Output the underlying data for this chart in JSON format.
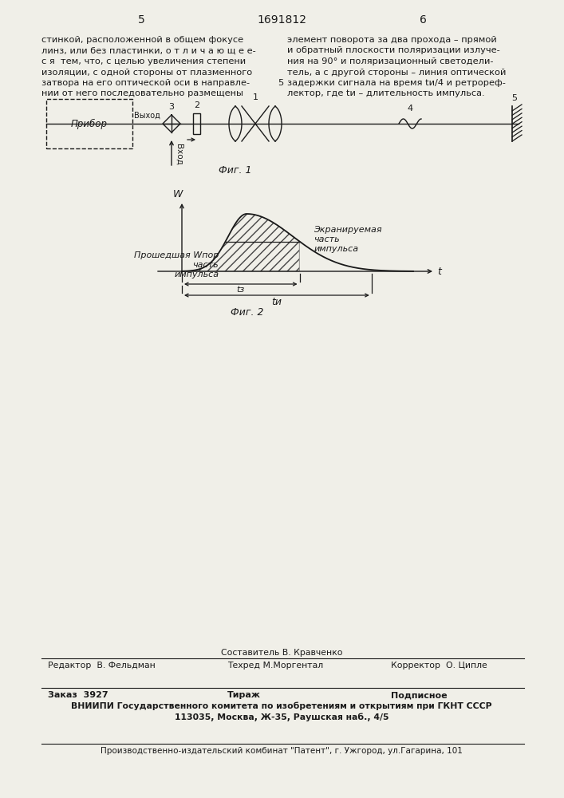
{
  "page_number_left": "5",
  "page_number_center": "1691812",
  "page_number_right": "6",
  "text_left_lines": [
    "стинкой, расположенной в общем фокусе",
    "линз, или без пластинки, о т л и ч а ю щ е е-",
    "с я  тем, что, с целью увеличения степени",
    "изоляции, с одной стороны от плазменного",
    "затвора на его оптической оси в направле-",
    "нии от него последовательно размещены"
  ],
  "text_right_lines": [
    "элемент поворота за два прохода – прямой",
    "и обратный плоскости поляризации излуче-",
    "ния на 90° и поляризационный светодели-",
    "тель, а с другой стороны – линия оптической",
    "задержки сигнала на время tи/4 и ретрореф-",
    "лектор, где tи – длительность импульса."
  ],
  "num_5_between": "5",
  "fig1_label": "Фиг. 1",
  "fig2_label": "Фиг. 2",
  "label_pribor": "Прибор",
  "label_vykhod": "Выход",
  "label_vkhod": "Вход",
  "label_W": "W",
  "label_t": "t",
  "label_1": "1",
  "label_2": "2",
  "label_3": "3",
  "label_4": "4",
  "label_5": "5",
  "label_passed_line1": "Прошедшая Wпор",
  "label_passed_line2": "часть",
  "label_passed_line3": "импульса",
  "label_screened_line1": "Экранируемая",
  "label_screened_line2": "часть",
  "label_screened_line3": "импульса",
  "label_t3": "tз",
  "label_tu": "tи",
  "footer_sestavitel": "Составитель В. Кравченко",
  "footer_redaktor": "Редактор  В. Фельдман",
  "footer_tekhred": "Техред М.Моргентал",
  "footer_korrektor": "Корректор  О. Ципле",
  "footer_zakaz": "Заказ  3927",
  "footer_tirazh": "Тираж",
  "footer_podpisnoe": "Подписное",
  "footer_vniiipi": "ВНИИПИ Государственного комитета по изобретениям и открытиям при ГКНТ СССР",
  "footer_address": "113035, Москва, Ж-35, Раушская наб., 4/5",
  "footer_proizv": "Производственно-издательский комбинат \"Патент\", г. Ужгород, ул.Гагарина, 101",
  "bg_color": "#f0efe8",
  "line_color": "#1a1a1a"
}
